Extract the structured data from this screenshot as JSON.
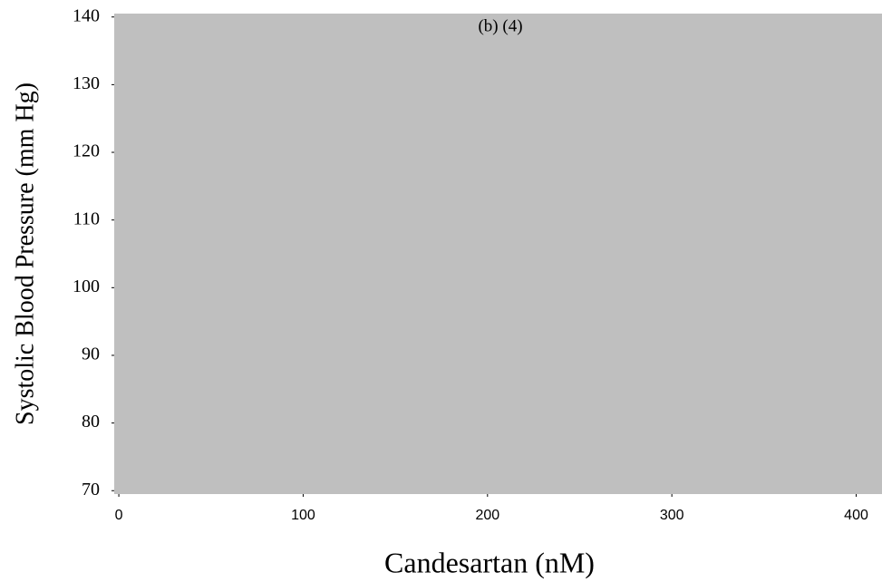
{
  "chart_data": {
    "type": "scatter",
    "annotation": "(b) (4)",
    "x_label": "Candesartan (nM)",
    "y_label": "Systolic Blood Pressure (mm Hg)",
    "x": [],
    "values": [],
    "xlim": [
      -2.5,
      414
    ],
    "xticks": [
      0,
      100,
      200,
      300,
      400
    ],
    "ylim": [
      69.5,
      140.5
    ],
    "yticks": [
      70,
      80,
      90,
      100,
      110,
      120,
      130,
      140
    ],
    "plot_color": "#bfbfbf",
    "grid": false
  }
}
